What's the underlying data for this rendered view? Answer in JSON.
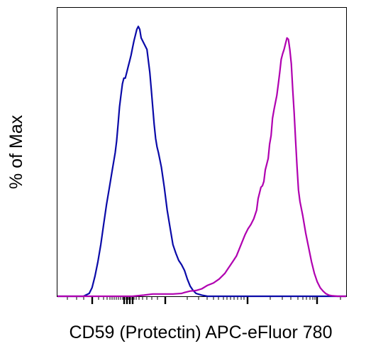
{
  "chart_data": {
    "type": "line",
    "title": "",
    "xlabel": "CD59 (Protectin) APC-eFluor 780",
    "ylabel": "% of Max",
    "x_scale": "logicle",
    "tick_labels_shown": false,
    "legend": "none",
    "grid": false,
    "ylim": [
      0,
      100
    ],
    "series": [
      {
        "color": "#0a0aa8",
        "points": [
          [
            0.0,
            0.0
          ],
          [
            0.09,
            0.0
          ],
          [
            0.11,
            1.0
          ],
          [
            0.12,
            3.0
          ],
          [
            0.13,
            7.0
          ],
          [
            0.14,
            12.0
          ],
          [
            0.15,
            18.0
          ],
          [
            0.16,
            25.0
          ],
          [
            0.17,
            32.0
          ],
          [
            0.18,
            38.0
          ],
          [
            0.19,
            44.0
          ],
          [
            0.2,
            50.0
          ],
          [
            0.205,
            54.0
          ],
          [
            0.21,
            60.0
          ],
          [
            0.215,
            66.0
          ],
          [
            0.22,
            70.0
          ],
          [
            0.225,
            74.0
          ],
          [
            0.23,
            76.0
          ],
          [
            0.235,
            76.0
          ],
          [
            0.24,
            78.0
          ],
          [
            0.245,
            80.0
          ],
          [
            0.25,
            82.0
          ],
          [
            0.255,
            84.0
          ],
          [
            0.26,
            86.5
          ],
          [
            0.265,
            89.0
          ],
          [
            0.27,
            91.0
          ],
          [
            0.275,
            93.0
          ],
          [
            0.28,
            94.0
          ],
          [
            0.285,
            93.0
          ],
          [
            0.29,
            90.0
          ],
          [
            0.3,
            88.0
          ],
          [
            0.31,
            86.0
          ],
          [
            0.315,
            82.0
          ],
          [
            0.32,
            78.0
          ],
          [
            0.325,
            72.0
          ],
          [
            0.33,
            66.0
          ],
          [
            0.335,
            60.0
          ],
          [
            0.34,
            55.0
          ],
          [
            0.345,
            52.0
          ],
          [
            0.35,
            50.0
          ],
          [
            0.36,
            45.0
          ],
          [
            0.37,
            38.0
          ],
          [
            0.38,
            30.0
          ],
          [
            0.39,
            24.0
          ],
          [
            0.4,
            18.0
          ],
          [
            0.41,
            15.0
          ],
          [
            0.42,
            12.5
          ],
          [
            0.43,
            11.0
          ],
          [
            0.44,
            9.0
          ],
          [
            0.45,
            6.0
          ],
          [
            0.46,
            3.5
          ],
          [
            0.47,
            2.0
          ],
          [
            0.48,
            1.0
          ],
          [
            0.5,
            0.4
          ],
          [
            0.52,
            0.0
          ],
          [
            1.0,
            0.0
          ]
        ]
      },
      {
        "color": "#b000b0",
        "points": [
          [
            0.0,
            0.0
          ],
          [
            0.26,
            0.0
          ],
          [
            0.3,
            0.4
          ],
          [
            0.33,
            0.8
          ],
          [
            0.36,
            0.8
          ],
          [
            0.4,
            0.8
          ],
          [
            0.43,
            1.0
          ],
          [
            0.44,
            1.3
          ],
          [
            0.46,
            1.8
          ],
          [
            0.48,
            2.0
          ],
          [
            0.5,
            2.6
          ],
          [
            0.52,
            3.8
          ],
          [
            0.54,
            4.6
          ],
          [
            0.56,
            6.0
          ],
          [
            0.58,
            8.0
          ],
          [
            0.59,
            9.5
          ],
          [
            0.6,
            11.0
          ],
          [
            0.61,
            12.5
          ],
          [
            0.62,
            14.0
          ],
          [
            0.63,
            16.5
          ],
          [
            0.64,
            19.0
          ],
          [
            0.65,
            21.5
          ],
          [
            0.66,
            23.5
          ],
          [
            0.67,
            25.0
          ],
          [
            0.68,
            27.0
          ],
          [
            0.69,
            30.0
          ],
          [
            0.695,
            34.0
          ],
          [
            0.7,
            36.0
          ],
          [
            0.705,
            38.0
          ],
          [
            0.71,
            38.5
          ],
          [
            0.715,
            40.0
          ],
          [
            0.72,
            44.0
          ],
          [
            0.73,
            48.0
          ],
          [
            0.735,
            53.0
          ],
          [
            0.74,
            56.0
          ],
          [
            0.745,
            62.0
          ],
          [
            0.75,
            65.0
          ],
          [
            0.76,
            70.0
          ],
          [
            0.765,
            74.0
          ],
          [
            0.77,
            78.0
          ],
          [
            0.775,
            82.5
          ],
          [
            0.78,
            84.5
          ],
          [
            0.785,
            86.0
          ],
          [
            0.79,
            88.0
          ],
          [
            0.795,
            90.0
          ],
          [
            0.8,
            89.5
          ],
          [
            0.805,
            86.0
          ],
          [
            0.81,
            81.0
          ],
          [
            0.815,
            72.0
          ],
          [
            0.82,
            64.0
          ],
          [
            0.825,
            54.0
          ],
          [
            0.83,
            45.0
          ],
          [
            0.835,
            37.0
          ],
          [
            0.84,
            33.0
          ],
          [
            0.85,
            28.0
          ],
          [
            0.86,
            22.0
          ],
          [
            0.87,
            17.0
          ],
          [
            0.88,
            12.0
          ],
          [
            0.89,
            8.0
          ],
          [
            0.9,
            5.0
          ],
          [
            0.91,
            3.0
          ],
          [
            0.92,
            1.8
          ],
          [
            0.93,
            0.9
          ],
          [
            0.94,
            0.4
          ],
          [
            0.95,
            0.2
          ],
          [
            0.97,
            0.0
          ],
          [
            1.0,
            0.0
          ]
        ]
      }
    ]
  }
}
